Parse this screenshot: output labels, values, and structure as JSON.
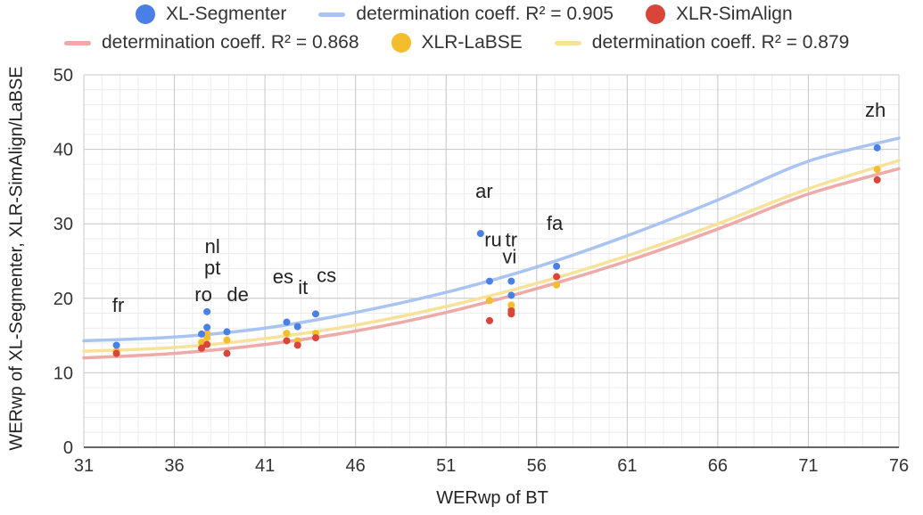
{
  "chart_data": {
    "type": "scatter",
    "xlabel": "WERwp of BT",
    "ylabel": "WERwp of XL-Segmenter, XLR-SimAlign/LaBSE",
    "xlim": [
      31,
      76
    ],
    "ylim": [
      0,
      50
    ],
    "xticks": [
      31,
      36,
      41,
      46,
      51,
      56,
      61,
      66,
      71,
      76
    ],
    "yticks": [
      0,
      10,
      20,
      30,
      40,
      50
    ],
    "grid": true,
    "legend_position": "top",
    "legend": [
      {
        "label": "XL-Segmenter",
        "kind": "dot",
        "color": "#4a80e6"
      },
      {
        "label": "determination coeff. R² = 0.905",
        "kind": "line",
        "color": "#a9c4f0"
      },
      {
        "label": "XLR-SimAlign",
        "kind": "dot",
        "color": "#d9453a"
      },
      {
        "label": "determination coeff. R² = 0.868",
        "kind": "line",
        "color": "#eeaaa6"
      },
      {
        "label": "XLR-LaBSE",
        "kind": "dot",
        "color": "#f3bd2e"
      },
      {
        "label": "determination coeff. R² = 0.879",
        "kind": "line",
        "color": "#f7e29a"
      }
    ],
    "series": [
      {
        "name": "XL-Segmenter",
        "color": "#4a80e6",
        "points": [
          {
            "x": 32.8,
            "y": 13.7
          },
          {
            "x": 37.5,
            "y": 15.2
          },
          {
            "x": 37.8,
            "y": 16.1
          },
          {
            "x": 37.8,
            "y": 18.2
          },
          {
            "x": 38.9,
            "y": 15.5
          },
          {
            "x": 42.2,
            "y": 16.8
          },
          {
            "x": 42.8,
            "y": 16.2
          },
          {
            "x": 43.8,
            "y": 17.9
          },
          {
            "x": 52.9,
            "y": 28.7
          },
          {
            "x": 53.4,
            "y": 22.3
          },
          {
            "x": 54.6,
            "y": 22.3
          },
          {
            "x": 54.6,
            "y": 20.4
          },
          {
            "x": 57.1,
            "y": 24.3
          },
          {
            "x": 74.8,
            "y": 40.2
          }
        ],
        "trend": [
          {
            "x": 31,
            "y": 14.3
          },
          {
            "x": 36,
            "y": 14.8
          },
          {
            "x": 41,
            "y": 16.0
          },
          {
            "x": 46,
            "y": 18.1
          },
          {
            "x": 51,
            "y": 20.8
          },
          {
            "x": 56,
            "y": 24.2
          },
          {
            "x": 61,
            "y": 28.4
          },
          {
            "x": 66,
            "y": 33.2
          },
          {
            "x": 71,
            "y": 38.4
          },
          {
            "x": 76,
            "y": 41.5
          }
        ]
      },
      {
        "name": "XLR-SimAlign",
        "color": "#d9453a",
        "points": [
          {
            "x": 32.8,
            "y": 12.6
          },
          {
            "x": 37.5,
            "y": 13.3
          },
          {
            "x": 37.8,
            "y": 13.8
          },
          {
            "x": 38.9,
            "y": 12.6
          },
          {
            "x": 42.2,
            "y": 14.3
          },
          {
            "x": 42.8,
            "y": 13.7
          },
          {
            "x": 43.8,
            "y": 14.7
          },
          {
            "x": 53.4,
            "y": 17.0
          },
          {
            "x": 54.6,
            "y": 17.9
          },
          {
            "x": 54.6,
            "y": 18.3
          },
          {
            "x": 57.1,
            "y": 22.9
          },
          {
            "x": 74.8,
            "y": 35.9
          }
        ],
        "trend": [
          {
            "x": 31,
            "y": 12.0
          },
          {
            "x": 36,
            "y": 12.6
          },
          {
            "x": 41,
            "y": 13.8
          },
          {
            "x": 46,
            "y": 15.6
          },
          {
            "x": 51,
            "y": 18.1
          },
          {
            "x": 56,
            "y": 21.3
          },
          {
            "x": 61,
            "y": 25.0
          },
          {
            "x": 66,
            "y": 29.3
          },
          {
            "x": 71,
            "y": 34.0
          },
          {
            "x": 76,
            "y": 37.4
          }
        ]
      },
      {
        "name": "XLR-LaBSE",
        "color": "#f3bd2e",
        "points": [
          {
            "x": 32.8,
            "y": 12.9
          },
          {
            "x": 37.5,
            "y": 14.1
          },
          {
            "x": 37.8,
            "y": 14.7
          },
          {
            "x": 37.8,
            "y": 15.3
          },
          {
            "x": 38.9,
            "y": 14.4
          },
          {
            "x": 42.2,
            "y": 15.3
          },
          {
            "x": 42.8,
            "y": 14.3
          },
          {
            "x": 43.8,
            "y": 15.3
          },
          {
            "x": 53.4,
            "y": 19.7
          },
          {
            "x": 54.6,
            "y": 18.5
          },
          {
            "x": 54.6,
            "y": 19.1
          },
          {
            "x": 57.1,
            "y": 21.8
          },
          {
            "x": 74.8,
            "y": 37.3
          }
        ],
        "trend": [
          {
            "x": 31,
            "y": 12.9
          },
          {
            "x": 36,
            "y": 13.4
          },
          {
            "x": 41,
            "y": 14.6
          },
          {
            "x": 46,
            "y": 16.4
          },
          {
            "x": 51,
            "y": 18.9
          },
          {
            "x": 56,
            "y": 22.0
          },
          {
            "x": 61,
            "y": 25.7
          },
          {
            "x": 66,
            "y": 30.0
          },
          {
            "x": 71,
            "y": 34.7
          },
          {
            "x": 76,
            "y": 38.5
          }
        ]
      }
    ],
    "annotations": [
      {
        "text": "fr",
        "x": 32.9,
        "y": 18.2
      },
      {
        "text": "nl",
        "x": 38.1,
        "y": 26.1
      },
      {
        "text": "pt",
        "x": 38.1,
        "y": 23.2
      },
      {
        "text": "ro",
        "x": 37.6,
        "y": 19.6
      },
      {
        "text": "de",
        "x": 39.5,
        "y": 19.6
      },
      {
        "text": "es",
        "x": 42.0,
        "y": 22.0
      },
      {
        "text": "it",
        "x": 43.1,
        "y": 20.6
      },
      {
        "text": "cs",
        "x": 44.4,
        "y": 22.2
      },
      {
        "text": "ar",
        "x": 53.1,
        "y": 33.5
      },
      {
        "text": "ru",
        "x": 53.6,
        "y": 27.0
      },
      {
        "text": "tr",
        "x": 54.6,
        "y": 27.0
      },
      {
        "text": "vi",
        "x": 54.5,
        "y": 24.7
      },
      {
        "text": "fa",
        "x": 57.0,
        "y": 29.2
      },
      {
        "text": "zh",
        "x": 74.7,
        "y": 44.4
      }
    ]
  }
}
